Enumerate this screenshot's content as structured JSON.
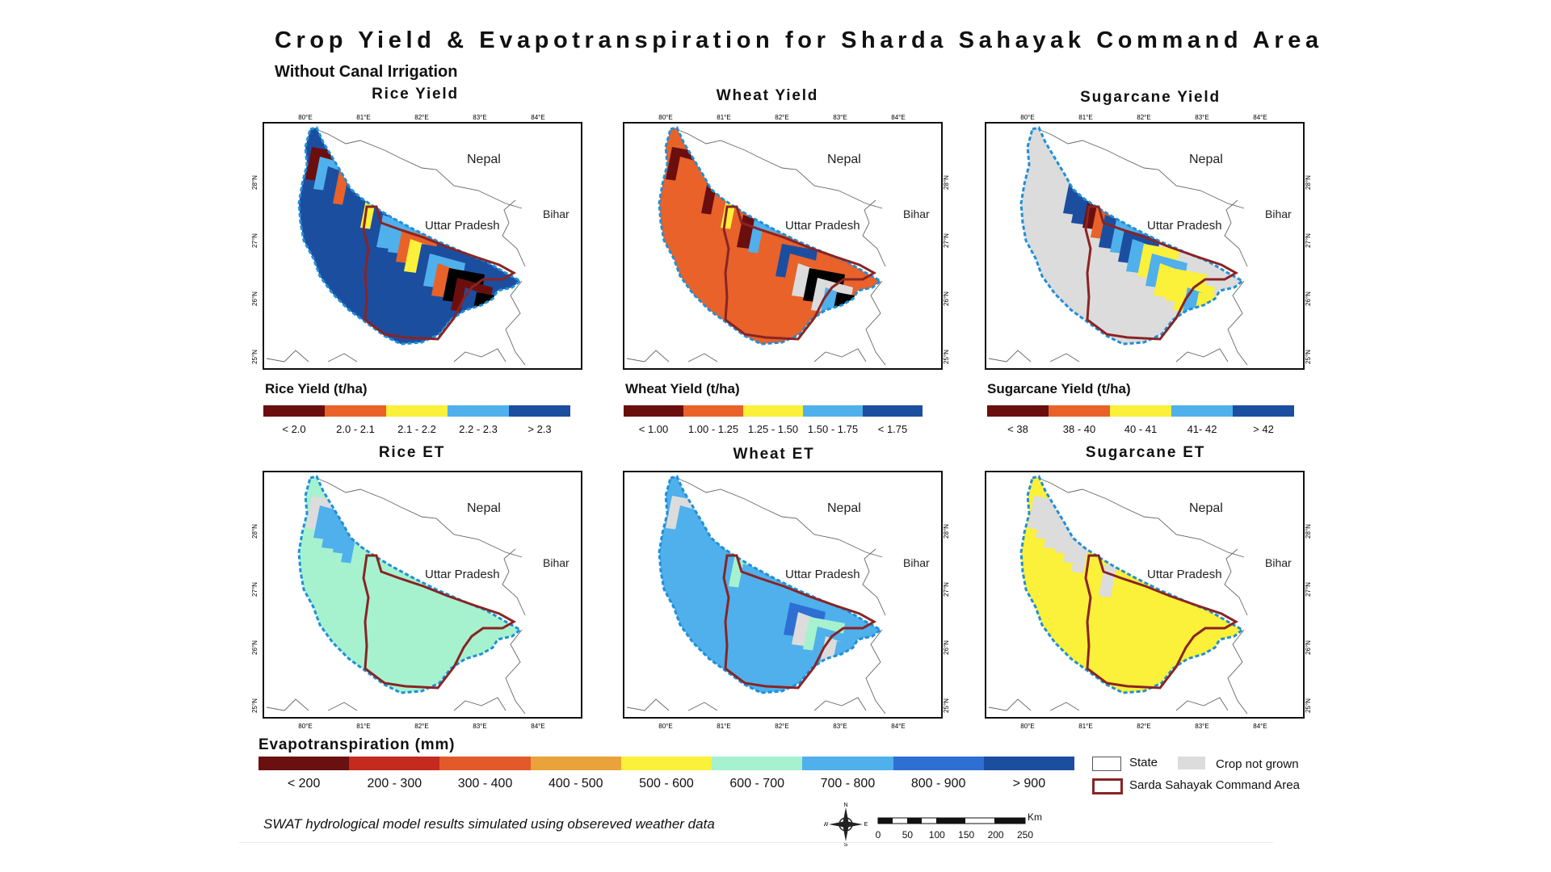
{
  "title": "Crop Yield & Evapotranspiration for Sharda Sahayak Command Area",
  "subtitle": "Without Canal Irrigation",
  "panels": [
    {
      "id": "rice-yield",
      "title": "Rice Yield",
      "legend_title": "Rice Yield (t/ha)",
      "legend": [
        "< 2.0",
        "2.0 - 2.1",
        "2.1 - 2.2",
        "2.2 - 2.3",
        "> 2.3"
      ]
    },
    {
      "id": "wheat-yield",
      "title": "Wheat Yield",
      "legend_title": "Wheat Yield (t/ha)",
      "legend": [
        "< 1.00",
        "1.00 - 1.25",
        "1.25 - 1.50",
        "1.50 - 1.75",
        "< 1.75"
      ]
    },
    {
      "id": "sugarcane-yield",
      "title": "Sugarcane Yield",
      "legend_title": "Sugarcane Yield (t/ha)",
      "legend": [
        "< 38",
        "38 - 40",
        "40 - 41",
        "41- 42",
        "> 42"
      ]
    },
    {
      "id": "rice-et",
      "title": "Rice ET"
    },
    {
      "id": "wheat-et",
      "title": "Wheat ET"
    },
    {
      "id": "sugarcane-et",
      "title": "Sugarcane ET"
    }
  ],
  "map_labels": {
    "nepal": "Nepal",
    "uttar_pradesh": "Uttar Pradesh",
    "bihar": "Bihar"
  },
  "lon_ticks": [
    "80°E",
    "81°E",
    "82°E",
    "83°E",
    "84°E"
  ],
  "lat_ticks": [
    "25°N",
    "26°N",
    "27°N",
    "28°N"
  ],
  "yield_colors": [
    "#6b0e0e",
    "#e8622a",
    "#fbf03a",
    "#4fb0ec",
    "#1c4ea0"
  ],
  "et_legend": {
    "title": "Evapotranspiration (mm)",
    "labels": [
      "< 200",
      "200 - 300",
      "300 - 400",
      "400 - 500",
      "500 - 600",
      "600 - 700",
      "700 - 800",
      "800 - 900",
      "> 900"
    ],
    "colors": [
      "#6b1010",
      "#c42a1e",
      "#e35a2a",
      "#eaa23a",
      "#fbf03a",
      "#a6f2cf",
      "#4fb0ec",
      "#2e6fd4",
      "#1c4ea0"
    ]
  },
  "key": {
    "state": "State",
    "crop_not_grown": "Crop not grown",
    "command_area": "Sarda Sahayak Command Area",
    "crop_not_grown_color": "#dcdcdc",
    "command_area_color": "#8a2424",
    "boundary_color": "#1f8fd8"
  },
  "scale": {
    "unit": "Km",
    "ticks": [
      "0",
      "50",
      "100",
      "150",
      "200",
      "250"
    ]
  },
  "north_arrow": {
    "n": "N",
    "s": "S",
    "e": "E",
    "w": "W"
  },
  "footnote": "SWAT hydrological model results simulated using obsereved weather data",
  "crop_maps": {
    "rice-yield": {
      "regions": [
        [
          0,
          3,
          4
        ],
        [
          1,
          4,
          4
        ],
        [
          2,
          4,
          3
        ],
        [
          3,
          1,
          2
        ],
        [
          4,
          3,
          1
        ],
        [
          5,
          0,
          4
        ],
        [
          6,
          2,
          1
        ],
        [
          7,
          3,
          2
        ]
      ],
      "base": 4
    },
    "wheat-yield": {
      "regions": [
        [
          0,
          1,
          1
        ],
        [
          1,
          0,
          1
        ],
        [
          2,
          1,
          0
        ],
        [
          3,
          1,
          1
        ],
        [
          4,
          1,
          "g"
        ],
        [
          5,
          "g",
          3
        ],
        [
          6,
          3,
          "g"
        ],
        [
          7,
          "g",
          4
        ]
      ],
      "base": 1
    },
    "sugarcane-yield": {
      "regions": [
        [
          "g",
          "g",
          "g"
        ],
        [
          "g",
          4,
          4
        ],
        [
          0,
          1,
          4
        ],
        [
          3,
          4,
          3
        ],
        [
          2,
          3,
          2
        ],
        [
          2,
          2,
          3
        ],
        [
          2,
          1,
          4
        ],
        [
          4,
          3,
          3
        ]
      ],
      "base": "g"
    },
    "rice-et": {
      "regions": [
        [
          "g",
          6,
          6
        ],
        [
          6,
          6,
          5
        ],
        [
          5,
          5,
          5
        ],
        [
          5,
          5,
          5
        ],
        [
          5,
          5,
          5
        ],
        [
          5,
          5,
          5
        ],
        [
          5,
          5,
          5
        ],
        [
          5,
          5,
          4
        ]
      ],
      "base": 5
    },
    "wheat-et": {
      "regions": [
        [
          "g",
          6,
          6
        ],
        [
          6,
          6,
          6
        ],
        [
          6,
          5,
          6
        ],
        [
          6,
          6,
          6
        ],
        [
          6,
          7,
          "g"
        ],
        [
          5,
          6,
          "g"
        ],
        [
          6,
          "g",
          7
        ],
        [
          6,
          "g",
          "g"
        ]
      ],
      "base": 6
    },
    "sugarcane-et": {
      "regions": [
        [
          "g",
          "g",
          "g"
        ],
        [
          "g",
          "g",
          "g"
        ],
        [
          4,
          4,
          "g"
        ],
        [
          4,
          4,
          4
        ],
        [
          4,
          4,
          4
        ],
        [
          4,
          4,
          4
        ],
        [
          4,
          4,
          4
        ],
        [
          4,
          4,
          4
        ]
      ],
      "base": 4
    }
  }
}
